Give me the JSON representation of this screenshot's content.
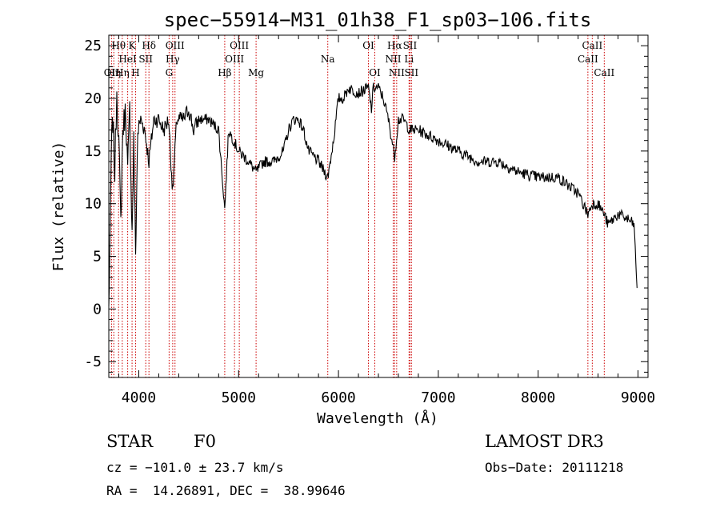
{
  "chart_data": {
    "type": "line",
    "title": "spec−55914−M31_01h38_F1_sp03−106.fits",
    "xlabel": "Wavelength (Å)",
    "ylabel": "Flux (relative)",
    "xlim": [
      3700,
      9100
    ],
    "ylim": [
      -6.5,
      26
    ],
    "xticks": [
      4000,
      5000,
      6000,
      7000,
      8000,
      9000
    ],
    "yticks": [
      -5,
      0,
      5,
      10,
      15,
      20,
      25
    ],
    "grid": false,
    "line_color": "#000000",
    "marker_color": "#cc0000",
    "spectrum_anchors": [
      [
        3700,
        0
      ],
      [
        3715,
        8
      ],
      [
        3725,
        15
      ],
      [
        3740,
        18
      ],
      [
        3760,
        13
      ],
      [
        3780,
        21
      ],
      [
        3800,
        16
      ],
      [
        3820,
        8
      ],
      [
        3840,
        17
      ],
      [
        3870,
        19
      ],
      [
        3889,
        13
      ],
      [
        3910,
        19
      ],
      [
        3933,
        7
      ],
      [
        3950,
        16
      ],
      [
        3968,
        5
      ],
      [
        3990,
        17
      ],
      [
        4020,
        18
      ],
      [
        4060,
        17
      ],
      [
        4102,
        14
      ],
      [
        4150,
        18
      ],
      [
        4200,
        18
      ],
      [
        4250,
        17
      ],
      [
        4300,
        18
      ],
      [
        4340,
        11
      ],
      [
        4380,
        18
      ],
      [
        4450,
        18
      ],
      [
        4500,
        19
      ],
      [
        4550,
        17
      ],
      [
        4600,
        18
      ],
      [
        4700,
        18
      ],
      [
        4800,
        17
      ],
      [
        4861,
        9.5
      ],
      [
        4900,
        17
      ],
      [
        5000,
        15
      ],
      [
        5100,
        14
      ],
      [
        5175,
        13
      ],
      [
        5250,
        14
      ],
      [
        5350,
        14
      ],
      [
        5450,
        15
      ],
      [
        5500,
        17
      ],
      [
        5550,
        18
      ],
      [
        5600,
        18
      ],
      [
        5650,
        17
      ],
      [
        5700,
        15
      ],
      [
        5800,
        14
      ],
      [
        5893,
        12.5
      ],
      [
        5950,
        16
      ],
      [
        6000,
        20
      ],
      [
        6050,
        20
      ],
      [
        6100,
        21
      ],
      [
        6200,
        20.5
      ],
      [
        6300,
        21
      ],
      [
        6330,
        19
      ],
      [
        6350,
        21
      ],
      [
        6400,
        21
      ],
      [
        6450,
        20
      ],
      [
        6500,
        18
      ],
      [
        6563,
        14.5
      ],
      [
        6600,
        18
      ],
      [
        6650,
        18
      ],
      [
        6716,
        17
      ],
      [
        6800,
        17
      ],
      [
        7000,
        16
      ],
      [
        7200,
        15
      ],
      [
        7400,
        14
      ],
      [
        7600,
        14
      ],
      [
        7800,
        13
      ],
      [
        8000,
        12.5
      ],
      [
        8200,
        12.5
      ],
      [
        8400,
        11
      ],
      [
        8498,
        9
      ],
      [
        8542,
        10
      ],
      [
        8600,
        10
      ],
      [
        8662,
        9
      ],
      [
        8700,
        8
      ],
      [
        8800,
        9
      ],
      [
        8900,
        8.5
      ],
      [
        8960,
        8
      ],
      [
        8990,
        2
      ]
    ],
    "lines": [
      {
        "wl": 3727,
        "label": "OII",
        "row": 3
      },
      {
        "wl": 3750,
        "label": "Hη",
        "row": 3
      },
      {
        "wl": 3798,
        "label": "Hθ",
        "row": 1
      },
      {
        "wl": 3835,
        "label": "Hη",
        "row": 3
      },
      {
        "wl": 3889,
        "label": "HeI",
        "row": 2
      },
      {
        "wl": 3933,
        "label": "K",
        "row": 1
      },
      {
        "wl": 3968,
        "label": "H",
        "row": 3
      },
      {
        "wl": 4070,
        "label": "SII",
        "row": 2
      },
      {
        "wl": 4102,
        "label": "Hδ",
        "row": 1
      },
      {
        "wl": 4304,
        "label": "G",
        "row": 3
      },
      {
        "wl": 4340,
        "label": "Hγ",
        "row": 2
      },
      {
        "wl": 4363,
        "label": "OIII",
        "row": 1
      },
      {
        "wl": 4861,
        "label": "Hβ",
        "row": 3
      },
      {
        "wl": 4959,
        "label": "OIII",
        "row": 2
      },
      {
        "wl": 5007,
        "label": "OIII",
        "row": 1
      },
      {
        "wl": 5175,
        "label": "Mg",
        "row": 3
      },
      {
        "wl": 5893,
        "label": "Na",
        "row": 2
      },
      {
        "wl": 6300,
        "label": "OI",
        "row": 1
      },
      {
        "wl": 6364,
        "label": "OI",
        "row": 3
      },
      {
        "wl": 6548,
        "label": "NII",
        "row": 2
      },
      {
        "wl": 6563,
        "label": "Hα",
        "row": 1
      },
      {
        "wl": 6583,
        "label": "NII",
        "row": 3
      },
      {
        "wl": 6707,
        "label": "Li",
        "row": 2
      },
      {
        "wl": 6716,
        "label": "SII",
        "row": 1
      },
      {
        "wl": 6731,
        "label": "SII",
        "row": 3
      },
      {
        "wl": 8498,
        "label": "CaII",
        "row": 2
      },
      {
        "wl": 8542,
        "label": "CaII",
        "row": 1
      },
      {
        "wl": 8662,
        "label": "CaII",
        "row": 3
      }
    ]
  },
  "info": {
    "class_label": "STAR",
    "subclass": "F0",
    "survey": "LAMOST DR3",
    "cz_line": "cz = −101.0 ± 23.7 km/s",
    "obs_date": "Obs−Date: 20111218",
    "radec_line": "RA =  14.26891, DEC =  38.99646"
  }
}
